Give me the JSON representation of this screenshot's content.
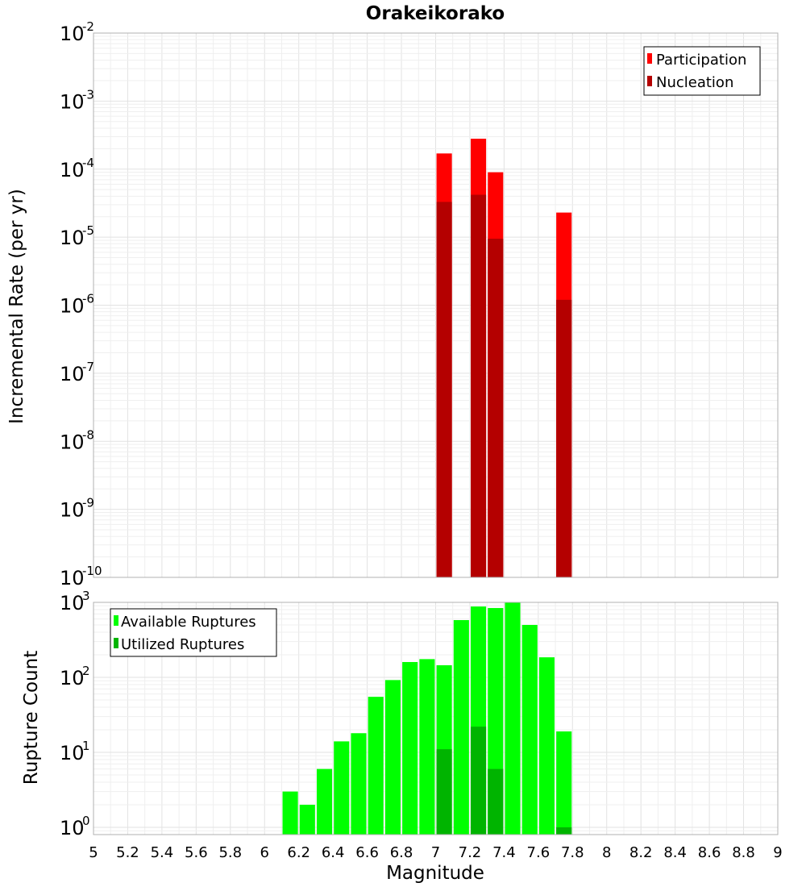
{
  "chart_data": [
    {
      "type": "bar",
      "title": "Orakeikorako",
      "xlabel": "",
      "ylabel": "Incremental Rate (per yr)",
      "yscale": "log",
      "ylim": [
        1e-10,
        0.01
      ],
      "xlim": [
        5,
        9
      ],
      "grid": true,
      "legend_position": "top-right",
      "bar_width": 0.09,
      "yticks": [
        {
          "base": "10",
          "exp": "-10"
        },
        {
          "base": "10",
          "exp": "-9"
        },
        {
          "base": "10",
          "exp": "-8"
        },
        {
          "base": "10",
          "exp": "-7"
        },
        {
          "base": "10",
          "exp": "-6"
        },
        {
          "base": "10",
          "exp": "-5"
        },
        {
          "base": "10",
          "exp": "-4"
        },
        {
          "base": "10",
          "exp": "-3"
        },
        {
          "base": "10",
          "exp": "-2"
        }
      ],
      "series": [
        {
          "name": "Participation",
          "color": "#ff0000",
          "points": [
            {
              "x": 7.05,
              "y": 0.00017
            },
            {
              "x": 7.25,
              "y": 0.00028
            },
            {
              "x": 7.35,
              "y": 9e-05
            },
            {
              "x": 7.75,
              "y": 2.3e-05
            }
          ]
        },
        {
          "name": "Nucleation",
          "color": "#b40000",
          "points": [
            {
              "x": 7.05,
              "y": 3.3e-05
            },
            {
              "x": 7.25,
              "y": 4.2e-05
            },
            {
              "x": 7.35,
              "y": 9.5e-06
            },
            {
              "x": 7.75,
              "y": 1.2e-06
            }
          ]
        }
      ]
    },
    {
      "type": "bar",
      "title": "",
      "xlabel": "Magnitude",
      "ylabel": "Rupture Count",
      "yscale": "log",
      "ylim": [
        0.8,
        1000
      ],
      "xlim": [
        5,
        9
      ],
      "grid": true,
      "legend_position": "top-left",
      "bar_width": 0.09,
      "xticks": [
        "5",
        "5.2",
        "5.4",
        "5.6",
        "5.8",
        "6",
        "6.2",
        "6.4",
        "6.6",
        "6.8",
        "7",
        "7.2",
        "7.4",
        "7.6",
        "7.8",
        "8",
        "8.2",
        "8.4",
        "8.6",
        "8.8",
        "9"
      ],
      "yticks": [
        {
          "base": "10",
          "exp": "0"
        },
        {
          "base": "10",
          "exp": "1"
        },
        {
          "base": "10",
          "exp": "2"
        },
        {
          "base": "10",
          "exp": "3"
        }
      ],
      "series": [
        {
          "name": "Available Ruptures",
          "color": "#00ff00",
          "points": [
            {
              "x": 6.15,
              "y": 3
            },
            {
              "x": 6.25,
              "y": 2
            },
            {
              "x": 6.35,
              "y": 6
            },
            {
              "x": 6.45,
              "y": 14
            },
            {
              "x": 6.55,
              "y": 18
            },
            {
              "x": 6.65,
              "y": 55
            },
            {
              "x": 6.75,
              "y": 92
            },
            {
              "x": 6.85,
              "y": 160
            },
            {
              "x": 6.95,
              "y": 175
            },
            {
              "x": 7.05,
              "y": 145
            },
            {
              "x": 7.15,
              "y": 580
            },
            {
              "x": 7.25,
              "y": 880
            },
            {
              "x": 7.35,
              "y": 840
            },
            {
              "x": 7.45,
              "y": 1000
            },
            {
              "x": 7.55,
              "y": 500
            },
            {
              "x": 7.65,
              "y": 185
            },
            {
              "x": 7.75,
              "y": 19
            }
          ]
        },
        {
          "name": "Utilized Ruptures",
          "color": "#00b400",
          "points": [
            {
              "x": 7.05,
              "y": 11
            },
            {
              "x": 7.25,
              "y": 22
            },
            {
              "x": 7.35,
              "y": 6
            },
            {
              "x": 7.75,
              "y": 1
            }
          ]
        }
      ]
    }
  ]
}
